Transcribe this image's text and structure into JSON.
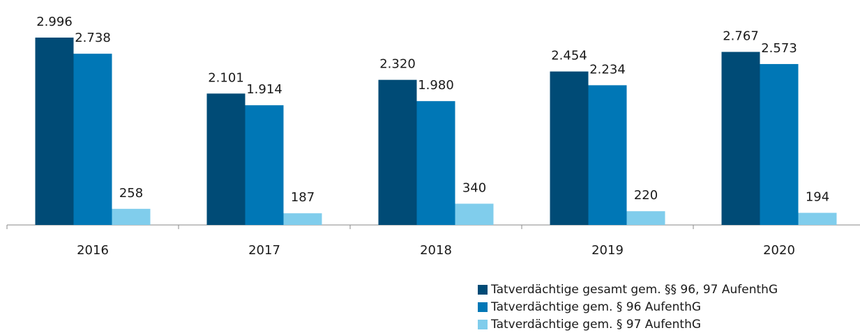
{
  "chart_data": {
    "type": "bar",
    "categories": [
      "2016",
      "2017",
      "2018",
      "2019",
      "2020"
    ],
    "series": [
      {
        "name": "Tatverdächtige gesamt gem. §§ 96, 97 AufenthG",
        "color": "#004b76",
        "values": [
          2996,
          2101,
          2320,
          2454,
          2767
        ],
        "value_labels": [
          "2.996",
          "2.101",
          "2.320",
          "2.454",
          "2.767"
        ]
      },
      {
        "name": "Tatverdächtige gem. § 96 AufenthG",
        "color": "#0077b6",
        "values": [
          2738,
          1914,
          1980,
          2234,
          2573
        ],
        "value_labels": [
          "2.738",
          "1.914",
          "1.980",
          "2.234",
          "2.573"
        ]
      },
      {
        "name": "Tatverdächtige gem. § 97 AufenthG",
        "color": "#80cdec",
        "values": [
          258,
          187,
          340,
          220,
          194
        ],
        "value_labels": [
          "258",
          "187",
          "340",
          "220",
          "194"
        ]
      }
    ]
  }
}
